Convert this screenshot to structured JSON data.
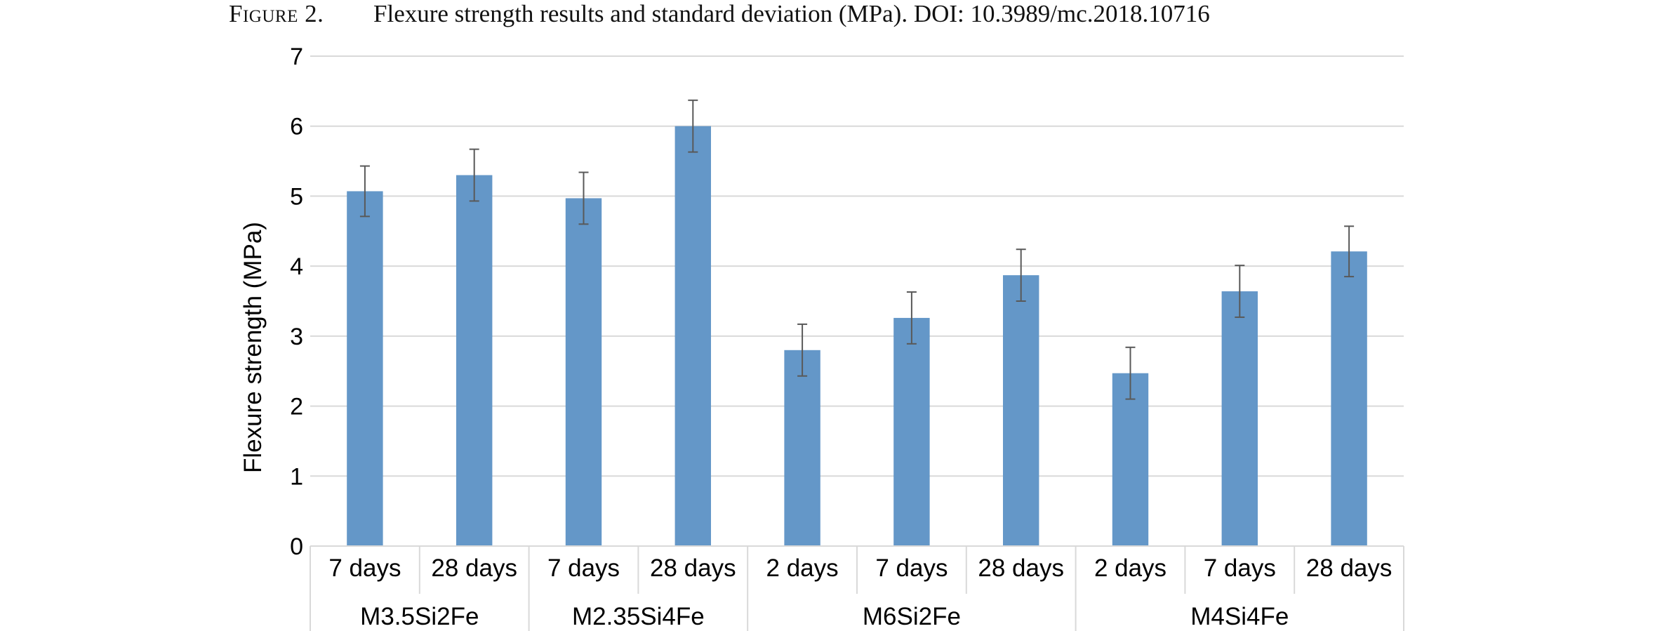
{
  "caption": {
    "label": "Figure 2.",
    "text": "Flexure strength results and standard deviation (MPa). DOI: 10.3989/mc.2018.10716"
  },
  "colors": {
    "bar": "#6497c8",
    "error_bar": "#595959",
    "grid": "#d9d9d9",
    "axis": "#d9d9d9"
  },
  "chart_data": {
    "type": "bar",
    "title": "",
    "xlabel": "",
    "ylabel": "Flexure strength (MPa)",
    "ylim": [
      0,
      7
    ],
    "yticks": [
      0,
      1,
      2,
      3,
      4,
      5,
      6,
      7
    ],
    "grid": true,
    "legend": "none",
    "groups": [
      {
        "name": "M3.5Si2Fe",
        "categories": [
          "7 days",
          "28 days"
        ],
        "values": [
          5.07,
          5.3
        ],
        "errors": [
          0.36,
          0.37
        ]
      },
      {
        "name": "M2.35Si4Fe",
        "categories": [
          "7 days",
          "28 days"
        ],
        "values": [
          4.97,
          6.0
        ],
        "errors": [
          0.37,
          0.37
        ]
      },
      {
        "name": "M6Si2Fe",
        "categories": [
          "2 days",
          "7 days",
          "28 days"
        ],
        "values": [
          2.8,
          3.26,
          3.87
        ],
        "errors": [
          0.37,
          0.37,
          0.37
        ]
      },
      {
        "name": "M4Si4Fe",
        "categories": [
          "2 days",
          "7 days",
          "28 days"
        ],
        "values": [
          2.47,
          3.64,
          4.21
        ],
        "errors": [
          0.37,
          0.37,
          0.36
        ]
      }
    ]
  }
}
